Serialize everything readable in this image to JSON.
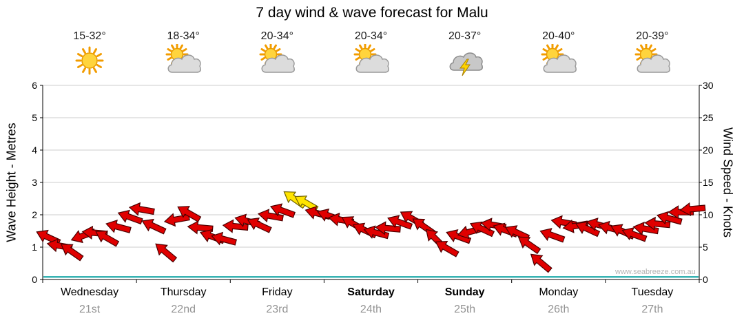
{
  "title": "7 day wind & wave forecast for Malu",
  "watermark": "www.seabreeze.com.au",
  "days": [
    {
      "name": "Wednesday",
      "date": "21st",
      "temp": "15-32°",
      "icon": "sunny",
      "weekend": false
    },
    {
      "name": "Thursday",
      "date": "22nd",
      "temp": "18-34°",
      "icon": "partly-cloudy",
      "weekend": false
    },
    {
      "name": "Friday",
      "date": "23rd",
      "temp": "20-34°",
      "icon": "partly-cloudy",
      "weekend": false
    },
    {
      "name": "Saturday",
      "date": "24th",
      "temp": "20-34°",
      "icon": "partly-cloudy",
      "weekend": true
    },
    {
      "name": "Sunday",
      "date": "25th",
      "temp": "20-37°",
      "icon": "storm",
      "weekend": true
    },
    {
      "name": "Monday",
      "date": "26th",
      "temp": "20-40°",
      "icon": "partly-cloudy",
      "weekend": false
    },
    {
      "name": "Tuesday",
      "date": "27th",
      "temp": "20-39°",
      "icon": "partly-cloudy",
      "weekend": false
    }
  ],
  "axes": {
    "left_label": "Wave Height - Metres",
    "right_label": "Wind Speed - Knots",
    "left_ticks": [
      0,
      1,
      2,
      3,
      4,
      5,
      6
    ],
    "right_ticks": [
      0,
      5,
      10,
      15,
      20,
      25,
      30
    ]
  },
  "chart_data": {
    "type": "wind-arrows",
    "categories": [
      "Wednesday 21st",
      "Thursday 22nd",
      "Friday 23rd",
      "Saturday 24th",
      "Sunday 25th",
      "Monday 26th",
      "Tuesday 27th"
    ],
    "points_per_day": 8,
    "ylim_left_metres": [
      0,
      6
    ],
    "ylim_right_knots": [
      0,
      30
    ],
    "wind_knots": [
      6.5,
      5.2,
      4.3,
      6.8,
      7.2,
      6.4,
      8.1,
      9.6,
      10.8,
      8.2,
      4.2,
      9.3,
      10.2,
      8.0,
      6.6,
      6.2,
      8.2,
      9.0,
      8.4,
      9.8,
      10.6,
      12.4,
      11.8,
      10.2,
      9.8,
      9.2,
      8.6,
      7.6,
      7.2,
      7.9,
      8.8,
      9.4,
      8.2,
      6.3,
      4.8,
      6.6,
      7.4,
      7.8,
      8.4,
      7.6,
      7.2,
      5.4,
      2.6,
      6.8,
      8.8,
      8.3,
      7.8,
      8.4,
      7.9,
      7.4,
      6.9,
      7.8,
      8.6,
      9.4,
      10.4,
      10.9
    ],
    "wind_dir_deg": [
      205,
      190,
      215,
      160,
      185,
      210,
      195,
      200,
      190,
      205,
      220,
      170,
      210,
      185,
      200,
      195,
      185,
      195,
      205,
      190,
      200,
      215,
      210,
      195,
      200,
      190,
      210,
      205,
      195,
      185,
      200,
      210,
      215,
      225,
      210,
      200,
      165,
      205,
      190,
      200,
      205,
      215,
      220,
      200,
      190,
      170,
      205,
      195,
      195,
      205,
      200,
      190,
      185,
      195,
      180,
      175
    ],
    "highlight_indices": [
      21,
      22
    ],
    "arrow_color": "#e00000",
    "highlight_color": "#ffe400",
    "wave_height_m": 0.08,
    "wave_color": "#009e9e",
    "grid_color": "#cccccc",
    "axis_color": "#000000"
  }
}
